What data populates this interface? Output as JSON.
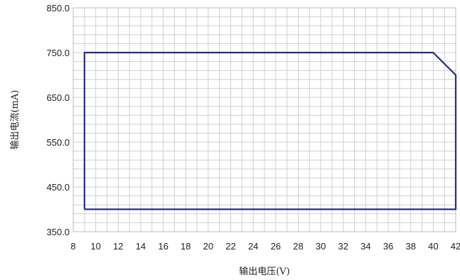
{
  "chart_data": {
    "type": "line",
    "xlabel": "输出电压(V)",
    "ylabel": "输出电流(mA)",
    "xlim": [
      8,
      42
    ],
    "ylim": [
      350,
      850
    ],
    "x_ticks": [
      "8",
      "10",
      "12",
      "14",
      "16",
      "18",
      "20",
      "22",
      "24",
      "26",
      "28",
      "30",
      "32",
      "34",
      "36",
      "38",
      "40",
      "42"
    ],
    "y_ticks": [
      "350.0",
      "450.0",
      "550.0",
      "650.0",
      "750.0",
      "850.0"
    ],
    "grid": true,
    "series": [
      {
        "color": "#2b2d7e",
        "points": [
          [
            9,
            400
          ],
          [
            9,
            750
          ],
          [
            40,
            750
          ],
          [
            42,
            700
          ],
          [
            42,
            400
          ],
          [
            9,
            400
          ]
        ]
      }
    ]
  },
  "colors": {
    "grid": "#d0d0d0",
    "frame": "#bcbcbc",
    "series": "#2b2d7e"
  }
}
